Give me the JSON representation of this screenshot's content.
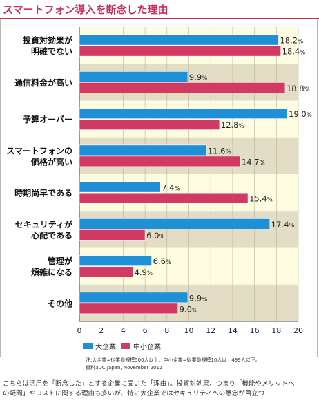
{
  "page_title": "スマートフォン導入を断念した理由",
  "chart_data": {
    "type": "bar",
    "orientation": "horizontal",
    "categories": [
      [
        "投資対効果が",
        "明確でない"
      ],
      [
        "通信料金が高い"
      ],
      [
        "予算オーバー"
      ],
      [
        "スマートフォンの",
        "価格が高い"
      ],
      [
        "時期尚早である"
      ],
      [
        "セキュリティが",
        "心配である"
      ],
      [
        "管理が",
        "煩雑になる"
      ],
      [
        "その他"
      ]
    ],
    "series": [
      {
        "name": "大企業",
        "color": "#1f8fd6",
        "values": [
          18.2,
          9.9,
          19.0,
          11.6,
          7.4,
          17.4,
          6.6,
          9.9
        ]
      },
      {
        "name": "中小企業",
        "color": "#d23a63",
        "values": [
          18.4,
          18.8,
          12.8,
          14.7,
          15.4,
          6.0,
          4.9,
          9.0
        ]
      }
    ],
    "value_labels": [
      [
        "18.2",
        "9.9",
        "19.0",
        "11.6",
        "7.4",
        "17.4",
        "6.6",
        "9.9"
      ],
      [
        "18.4",
        "18.8",
        "12.8",
        "14.7",
        "15.4",
        "6.0",
        "4.9",
        "9.0"
      ]
    ],
    "unit": "%",
    "xlim": [
      0,
      20
    ],
    "xticks": [
      "0",
      "2",
      "4",
      "6",
      "8",
      "10",
      "12",
      "14",
      "16",
      "18",
      "20"
    ],
    "band_colors": [
      "#fdfbe0",
      "#e2ddc4"
    ],
    "gridlines": true,
    "legend": "bottom-left"
  },
  "notes": [
    "注:大企業=従業員規模500人以上、中小企業=従業員規模10人以上499人以下。",
    "資料:IDC Japan, November 2011"
  ],
  "caption": [
    "こちらは活用を「断念した」とする企業に聞いた「理由」。投資対効果、つまり「機能やメリットへ",
    "の疑問」やコストに関する理由も多いが、特に大企業ではセキュリティへの懸念が目立つ"
  ]
}
